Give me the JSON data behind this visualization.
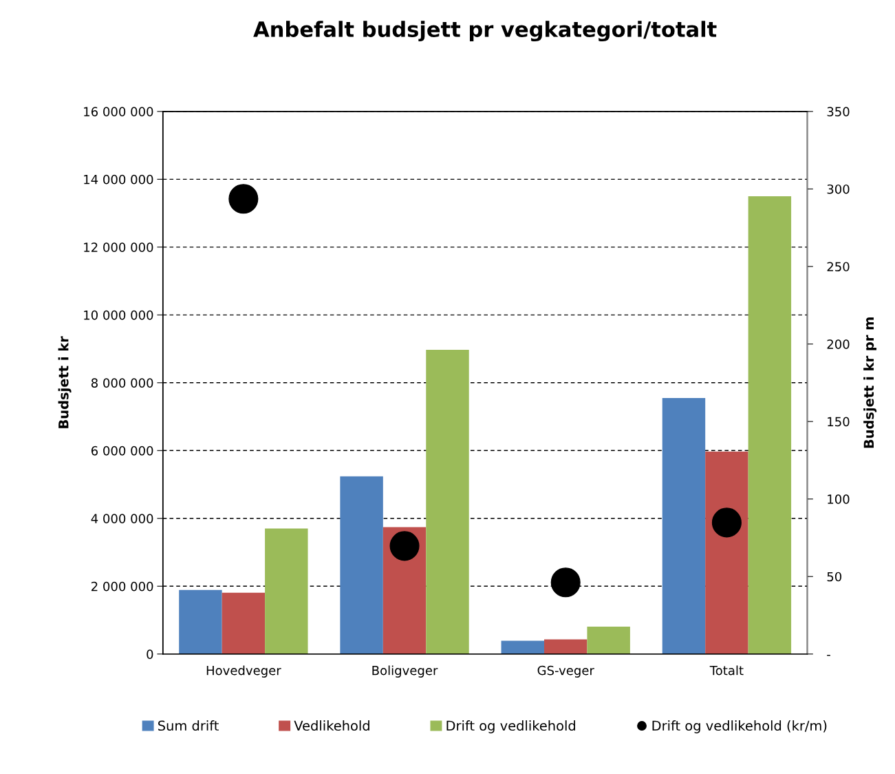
{
  "chart_data": {
    "type": "bar",
    "title": "Anbefalt budsjett pr vegkategori/totalt",
    "ylabel": "Budsjett i kr",
    "y2label": "Budsjett i kr pr m",
    "categories": [
      "Hovedveger",
      "Boligveger",
      "GS-veger",
      "Totalt"
    ],
    "series": [
      {
        "name": "Sum drift",
        "color": "#4f81bd",
        "values": [
          1890000,
          5240000,
          390000,
          7550000
        ]
      },
      {
        "name": "Vedlikehold",
        "color": "#c0504d",
        "values": [
          1810000,
          3740000,
          430000,
          5970000
        ]
      },
      {
        "name": "Drift og vedlikehold",
        "color": "#9bbb59",
        "values": [
          3700000,
          8970000,
          810000,
          13500000
        ]
      },
      {
        "name": "Drift og vedlikehold (kr/m)",
        "type": "scatter",
        "axis": "y2",
        "color": "#000000",
        "marker": "circle",
        "values": [
          293.6,
          69.7,
          46.2,
          84.8
        ]
      }
    ],
    "ylim": [
      0,
      16000000
    ],
    "yticks": [
      {
        "value": 0,
        "label": "0"
      },
      {
        "value": 2000000,
        "label": "2 000 000"
      },
      {
        "value": 4000000,
        "label": "4 000 000"
      },
      {
        "value": 6000000,
        "label": "6 000 000"
      },
      {
        "value": 8000000,
        "label": "8 000 000"
      },
      {
        "value": 10000000,
        "label": "10 000 000"
      },
      {
        "value": 12000000,
        "label": "12 000 000"
      },
      {
        "value": 14000000,
        "label": "14 000 000"
      },
      {
        "value": 16000000,
        "label": "16 000 000"
      }
    ],
    "y2lim": [
      0,
      350
    ],
    "y2ticks": [
      {
        "value": 0,
        "label": "-"
      },
      50,
      100,
      150,
      200,
      250,
      300,
      350
    ],
    "grid": "y",
    "legend": "bottom"
  }
}
